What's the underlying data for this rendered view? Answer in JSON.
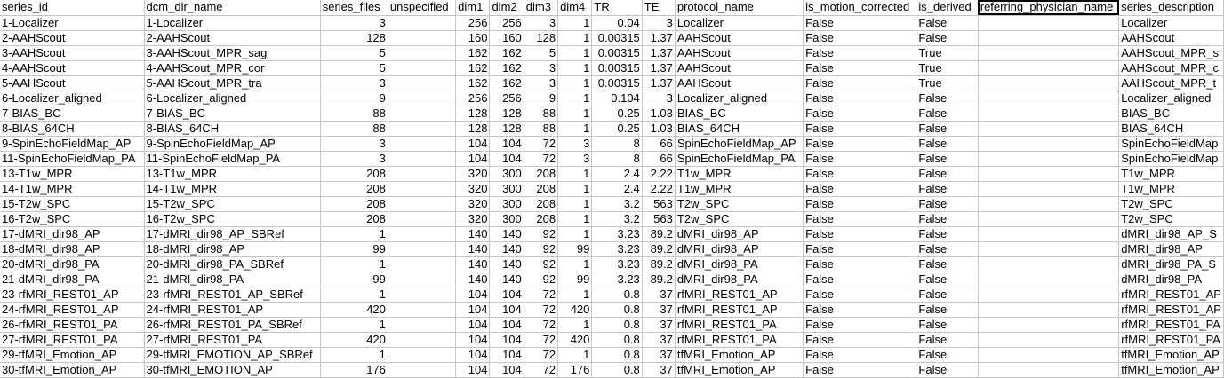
{
  "spreadsheet": {
    "columns": [
      {
        "key": "series_id",
        "label": "series_id",
        "align": "left",
        "width": 163
      },
      {
        "key": "dcm_dir_name",
        "label": "dcm_dir_name",
        "align": "left",
        "width": 199
      },
      {
        "key": "series_files",
        "label": "series_files",
        "align": "right",
        "width": 77
      },
      {
        "key": "unspecified",
        "label": "unspecified",
        "align": "left",
        "width": 77
      },
      {
        "key": "dim1",
        "label": "dim1",
        "align": "right",
        "width": 39
      },
      {
        "key": "dim2",
        "label": "dim2",
        "align": "right",
        "width": 39
      },
      {
        "key": "dim3",
        "label": "dim3",
        "align": "right",
        "width": 39
      },
      {
        "key": "dim4",
        "label": "dim4",
        "align": "right",
        "width": 39
      },
      {
        "key": "TR",
        "label": "TR",
        "align": "right",
        "width": 57
      },
      {
        "key": "TE",
        "label": "TE",
        "align": "right",
        "width": 38
      },
      {
        "key": "protocol_name",
        "label": "protocol_name",
        "align": "left",
        "width": 145
      },
      {
        "key": "is_motion_corrected",
        "label": "is_motion_corrected",
        "align": "left",
        "width": 128
      },
      {
        "key": "is_derived",
        "label": "is_derived",
        "align": "left",
        "width": 70
      },
      {
        "key": "referring_physician_name",
        "label": "referring_physician_name",
        "align": "left",
        "width": 159
      },
      {
        "key": "series_description",
        "label": "series_description",
        "align": "left",
        "width": 108
      }
    ],
    "selected_cell": {
      "row": "header",
      "col": "referring_physician_name"
    },
    "rows": [
      [
        "1-Localizer",
        "1-Localizer",
        "3",
        "",
        "256",
        "256",
        "3",
        "1",
        "0.04",
        "3",
        "Localizer",
        "False",
        "False",
        "",
        "Localizer"
      ],
      [
        "2-AAHScout",
        "2-AAHScout",
        "128",
        "",
        "160",
        "160",
        "128",
        "1",
        "0.00315",
        "1.37",
        "AAHScout",
        "False",
        "False",
        "",
        "AAHScout"
      ],
      [
        "3-AAHScout",
        "3-AAHScout_MPR_sag",
        "5",
        "",
        "162",
        "162",
        "5",
        "1",
        "0.00315",
        "1.37",
        "AAHScout",
        "False",
        "True",
        "",
        "AAHScout_MPR_s"
      ],
      [
        "4-AAHScout",
        "4-AAHScout_MPR_cor",
        "5",
        "",
        "162",
        "162",
        "3",
        "1",
        "0.00315",
        "1.37",
        "AAHScout",
        "False",
        "True",
        "",
        "AAHScout_MPR_c"
      ],
      [
        "5-AAHScout",
        "5-AAHScout_MPR_tra",
        "3",
        "",
        "162",
        "162",
        "3",
        "1",
        "0.00315",
        "1.37",
        "AAHScout",
        "False",
        "True",
        "",
        "AAHScout_MPR_t"
      ],
      [
        "6-Localizer_aligned",
        "6-Localizer_aligned",
        "9",
        "",
        "256",
        "256",
        "9",
        "1",
        "0.104",
        "3",
        "Localizer_aligned",
        "False",
        "False",
        "",
        "Localizer_aligned"
      ],
      [
        "7-BIAS_BC",
        "7-BIAS_BC",
        "88",
        "",
        "128",
        "128",
        "88",
        "1",
        "0.25",
        "1.03",
        "BIAS_BC",
        "False",
        "False",
        "",
        "BIAS_BC"
      ],
      [
        "8-BIAS_64CH",
        "8-BIAS_64CH",
        "88",
        "",
        "128",
        "128",
        "88",
        "1",
        "0.25",
        "1.03",
        "BIAS_64CH",
        "False",
        "False",
        "",
        "BIAS_64CH"
      ],
      [
        "9-SpinEchoFieldMap_AP",
        "9-SpinEchoFieldMap_AP",
        "3",
        "",
        "104",
        "104",
        "72",
        "3",
        "8",
        "66",
        "SpinEchoFieldMap_AP",
        "False",
        "False",
        "",
        "SpinEchoFieldMap"
      ],
      [
        "11-SpinEchoFieldMap_PA",
        "11-SpinEchoFieldMap_PA",
        "3",
        "",
        "104",
        "104",
        "72",
        "3",
        "8",
        "66",
        "SpinEchoFieldMap_PA",
        "False",
        "False",
        "",
        "SpinEchoFieldMap"
      ],
      [
        "13-T1w_MPR",
        "13-T1w_MPR",
        "208",
        "",
        "320",
        "300",
        "208",
        "1",
        "2.4",
        "2.22",
        "T1w_MPR",
        "False",
        "False",
        "",
        "T1w_MPR"
      ],
      [
        "14-T1w_MPR",
        "14-T1w_MPR",
        "208",
        "",
        "320",
        "300",
        "208",
        "1",
        "2.4",
        "2.22",
        "T1w_MPR",
        "False",
        "False",
        "",
        "T1w_MPR"
      ],
      [
        "15-T2w_SPC",
        "15-T2w_SPC",
        "208",
        "",
        "320",
        "300",
        "208",
        "1",
        "3.2",
        "563",
        "T2w_SPC",
        "False",
        "False",
        "",
        "T2w_SPC"
      ],
      [
        "16-T2w_SPC",
        "16-T2w_SPC",
        "208",
        "",
        "320",
        "300",
        "208",
        "1",
        "3.2",
        "563",
        "T2w_SPC",
        "False",
        "False",
        "",
        "T2w_SPC"
      ],
      [
        "17-dMRI_dir98_AP",
        "17-dMRI_dir98_AP_SBRef",
        "1",
        "",
        "140",
        "140",
        "92",
        "1",
        "3.23",
        "89.2",
        "dMRI_dir98_AP",
        "False",
        "False",
        "",
        "dMRI_dir98_AP_S"
      ],
      [
        "18-dMRI_dir98_AP",
        "18-dMRI_dir98_AP",
        "99",
        "",
        "140",
        "140",
        "92",
        "99",
        "3.23",
        "89.2",
        "dMRI_dir98_AP",
        "False",
        "False",
        "",
        "dMRI_dir98_AP"
      ],
      [
        "20-dMRI_dir98_PA",
        "20-dMRI_dir98_PA_SBRef",
        "1",
        "",
        "140",
        "140",
        "92",
        "1",
        "3.23",
        "89.2",
        "dMRI_dir98_PA",
        "False",
        "False",
        "",
        "dMRI_dir98_PA_S"
      ],
      [
        "21-dMRI_dir98_PA",
        "21-dMRI_dir98_PA",
        "99",
        "",
        "140",
        "140",
        "92",
        "99",
        "3.23",
        "89.2",
        "dMRI_dir98_PA",
        "False",
        "False",
        "",
        "dMRI_dir98_PA"
      ],
      [
        "23-rfMRI_REST01_AP",
        "23-rfMRI_REST01_AP_SBRef",
        "1",
        "",
        "104",
        "104",
        "72",
        "1",
        "0.8",
        "37",
        "rfMRI_REST01_AP",
        "False",
        "False",
        "",
        "rfMRI_REST01_AP"
      ],
      [
        "24-rfMRI_REST01_AP",
        "24-rfMRI_REST01_AP",
        "420",
        "",
        "104",
        "104",
        "72",
        "420",
        "0.8",
        "37",
        "rfMRI_REST01_AP",
        "False",
        "False",
        "",
        "rfMRI_REST01_AP"
      ],
      [
        "26-rfMRI_REST01_PA",
        "26-rfMRI_REST01_PA_SBRef",
        "1",
        "",
        "104",
        "104",
        "72",
        "1",
        "0.8",
        "37",
        "rfMRI_REST01_PA",
        "False",
        "False",
        "",
        "rfMRI_REST01_PA"
      ],
      [
        "27-rfMRI_REST01_PA",
        "27-rfMRI_REST01_PA",
        "420",
        "",
        "104",
        "104",
        "72",
        "420",
        "0.8",
        "37",
        "rfMRI_REST01_PA",
        "False",
        "False",
        "",
        "rfMRI_REST01_PA"
      ],
      [
        "29-tfMRI_Emotion_AP",
        "29-tfMRI_EMOTION_AP_SBRef",
        "1",
        "",
        "104",
        "104",
        "72",
        "1",
        "0.8",
        "37",
        "tfMRI_Emotion_AP",
        "False",
        "False",
        "",
        "tfMRI_Emotion_AP"
      ],
      [
        "30-tfMRI_Emotion_AP",
        "30-tfMRI_EMOTION_AP",
        "176",
        "",
        "104",
        "104",
        "72",
        "176",
        "0.8",
        "37",
        "tfMRI_Emotion_AP",
        "False",
        "False",
        "",
        "tfMRI_Emotion_AP"
      ]
    ]
  }
}
